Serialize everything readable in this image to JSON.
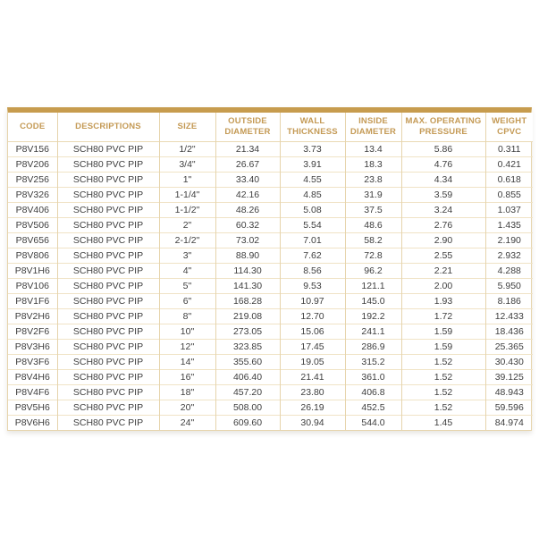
{
  "colors": {
    "accent_border": "#C79C4E",
    "header_text": "#C49A55",
    "grid_line": "#E6D4AC",
    "row_line": "#F0E3C6",
    "body_text": "#3E3E3E",
    "background": "#FFFFFF"
  },
  "table": {
    "columns": [
      {
        "key": "code",
        "label": "CODE"
      },
      {
        "key": "description",
        "label": "DESCRIPTIONS"
      },
      {
        "key": "size",
        "label": "SIZE"
      },
      {
        "key": "outside_diameter",
        "label": "OUTSIDE DIAMETER"
      },
      {
        "key": "wall_thickness",
        "label": "WALL THICKNESS"
      },
      {
        "key": "inside_diameter",
        "label": "INSIDE DIAMETER"
      },
      {
        "key": "max_operating_pressure",
        "label": "MAX. OPERATING PRESSURE"
      },
      {
        "key": "weight_cpvc",
        "label": "WEIGHT CPVC"
      }
    ],
    "rows": [
      [
        "P8V156",
        "SCH80 PVC PIP",
        "1/2\"",
        "21.34",
        "3.73",
        "13.4",
        "5.86",
        "0.311"
      ],
      [
        "P8V206",
        "SCH80 PVC PIP",
        "3/4\"",
        "26.67",
        "3.91",
        "18.3",
        "4.76",
        "0.421"
      ],
      [
        "P8V256",
        "SCH80 PVC PIP",
        "1\"",
        "33.40",
        "4.55",
        "23.8",
        "4.34",
        "0.618"
      ],
      [
        "P8V326",
        "SCH80 PVC PIP",
        "1-1/4\"",
        "42.16",
        "4.85",
        "31.9",
        "3.59",
        "0.855"
      ],
      [
        "P8V406",
        "SCH80 PVC PIP",
        "1-1/2\"",
        "48.26",
        "5.08",
        "37.5",
        "3.24",
        "1.037"
      ],
      [
        "P8V506",
        "SCH80 PVC PIP",
        "2\"",
        "60.32",
        "5.54",
        "48.6",
        "2.76",
        "1.435"
      ],
      [
        "P8V656",
        "SCH80 PVC PIP",
        "2-1/2\"",
        "73.02",
        "7.01",
        "58.2",
        "2.90",
        "2.190"
      ],
      [
        "P8V806",
        "SCH80 PVC PIP",
        "3\"",
        "88.90",
        "7.62",
        "72.8",
        "2.55",
        "2.932"
      ],
      [
        "P8V1H6",
        "SCH80 PVC PIP",
        "4\"",
        "114.30",
        "8.56",
        "96.2",
        "2.21",
        "4.288"
      ],
      [
        "P8V106",
        "SCH80 PVC PIP",
        "5''",
        "141.30",
        "9.53",
        "121.1",
        "2.00",
        "5.950"
      ],
      [
        "P8V1F6",
        "SCH80 PVC PIP",
        "6\"",
        "168.28",
        "10.97",
        "145.0",
        "1.93",
        "8.186"
      ],
      [
        "P8V2H6",
        "SCH80 PVC PIP",
        "8''",
        "219.08",
        "12.70",
        "192.2",
        "1.72",
        "12.433"
      ],
      [
        "P8V2F6",
        "SCH80 PVC PIP",
        "10\"",
        "273.05",
        "15.06",
        "241.1",
        "1.59",
        "18.436"
      ],
      [
        "P8V3H6",
        "SCH80 PVC PIP",
        "12''",
        "323.85",
        "17.45",
        "286.9",
        "1.59",
        "25.365"
      ],
      [
        "P8V3F6",
        "SCH80 PVC PIP",
        "14\"",
        "355.60",
        "19.05",
        "315.2",
        "1.52",
        "30.430"
      ],
      [
        "P8V4H6",
        "SCH80 PVC PIP",
        "16\"",
        "406.40",
        "21.41",
        "361.0",
        "1.52",
        "39.125"
      ],
      [
        "P8V4F6",
        "SCH80 PVC PIP",
        "18\"",
        "457.20",
        "23.80",
        "406.8",
        "1.52",
        "48.943"
      ],
      [
        "P8V5H6",
        "SCH80 PVC PIP",
        "20\"",
        "508.00",
        "26.19",
        "452.5",
        "1.52",
        "59.596"
      ],
      [
        "P8V6H6",
        "SCH80 PVC PIP",
        "24\"",
        "609.60",
        "30.94",
        "544.0",
        "1.45",
        "84.974"
      ]
    ]
  }
}
